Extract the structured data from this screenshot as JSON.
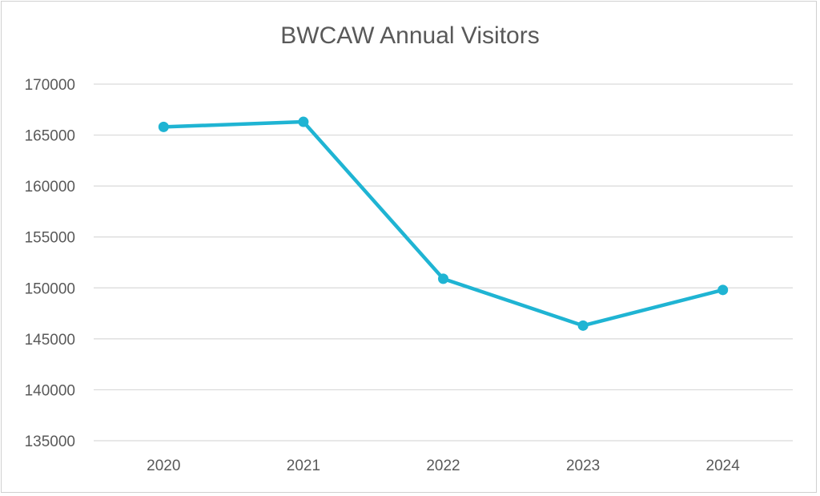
{
  "chart_data": {
    "type": "line",
    "title": "BWCAW Annual Visitors",
    "xlabel": "",
    "ylabel": "",
    "categories": [
      "2020",
      "2021",
      "2022",
      "2023",
      "2024"
    ],
    "series": [
      {
        "values": [
          165800,
          166300,
          150900,
          146300,
          149800
        ],
        "color": "#1fb4d3"
      }
    ],
    "ylim": [
      135000,
      170000
    ],
    "yticks": [
      135000,
      140000,
      145000,
      150000,
      155000,
      160000,
      165000,
      170000
    ],
    "grid": true,
    "legend": "none"
  }
}
